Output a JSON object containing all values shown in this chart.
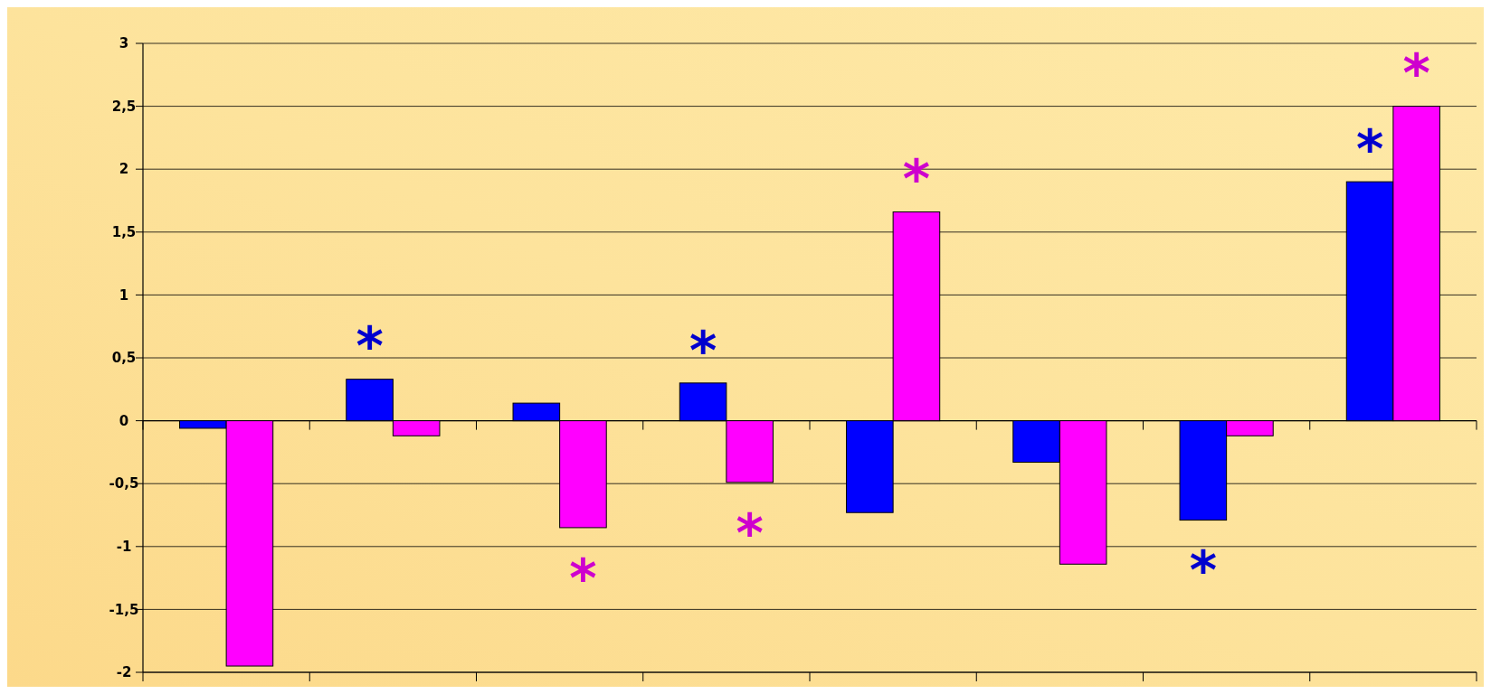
{
  "chart_data": {
    "type": "bar",
    "categories": [
      null,
      null,
      null,
      null,
      null,
      null,
      null,
      null
    ],
    "series": [
      {
        "color": "#0000ff",
        "values": [
          -0.06,
          0.33,
          0.14,
          0.3,
          -0.73,
          -0.33,
          -0.79,
          1.9
        ],
        "value_labels": [
          null,
          "*",
          null,
          "*",
          null,
          null,
          "*",
          "*"
        ]
      },
      {
        "color": "#ff00ff",
        "values": [
          -1.95,
          -0.12,
          -0.85,
          -0.49,
          1.66,
          -1.14,
          -0.12,
          2.5
        ],
        "value_labels": [
          null,
          null,
          "*",
          "*",
          "*",
          null,
          null,
          "*"
        ]
      }
    ],
    "ylim": [
      -2,
      3
    ],
    "yticks": [
      -2,
      {
        "value": -1.5,
        "label": "-1,5"
      },
      -1,
      {
        "value": -0.5,
        "label": "-0,5"
      },
      0,
      {
        "value": 0.5,
        "label": "0,5"
      },
      1,
      {
        "value": 1.5,
        "label": "1,5"
      },
      2,
      {
        "value": 2.5,
        "label": "2,5"
      },
      3
    ],
    "grid": "y"
  }
}
